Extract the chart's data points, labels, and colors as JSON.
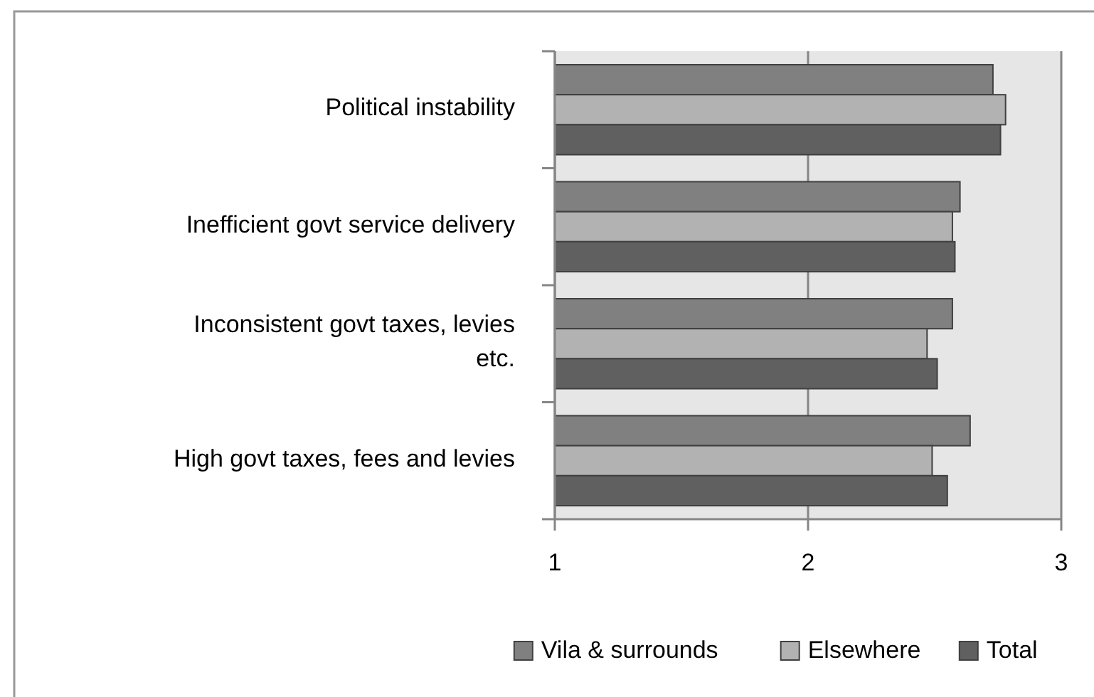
{
  "chart_data": {
    "type": "bar",
    "orientation": "horizontal",
    "categories": [
      "Political instability",
      "Inefficient govt service delivery",
      "Inconsistent govt taxes, levies etc.",
      "High govt taxes, fees and levies"
    ],
    "series": [
      {
        "name": "Vila & surrounds",
        "color": "#808080",
        "values": [
          2.73,
          2.6,
          2.57,
          2.64
        ]
      },
      {
        "name": "Elsewhere",
        "color": "#b2b2b2",
        "values": [
          2.78,
          2.57,
          2.47,
          2.49
        ]
      },
      {
        "name": "Total",
        "color": "#606060",
        "values": [
          2.76,
          2.58,
          2.51,
          2.55
        ]
      }
    ],
    "xlim": [
      1,
      3
    ],
    "xticks": [
      1,
      2,
      3
    ],
    "grid": "x",
    "legend": "bottom"
  }
}
